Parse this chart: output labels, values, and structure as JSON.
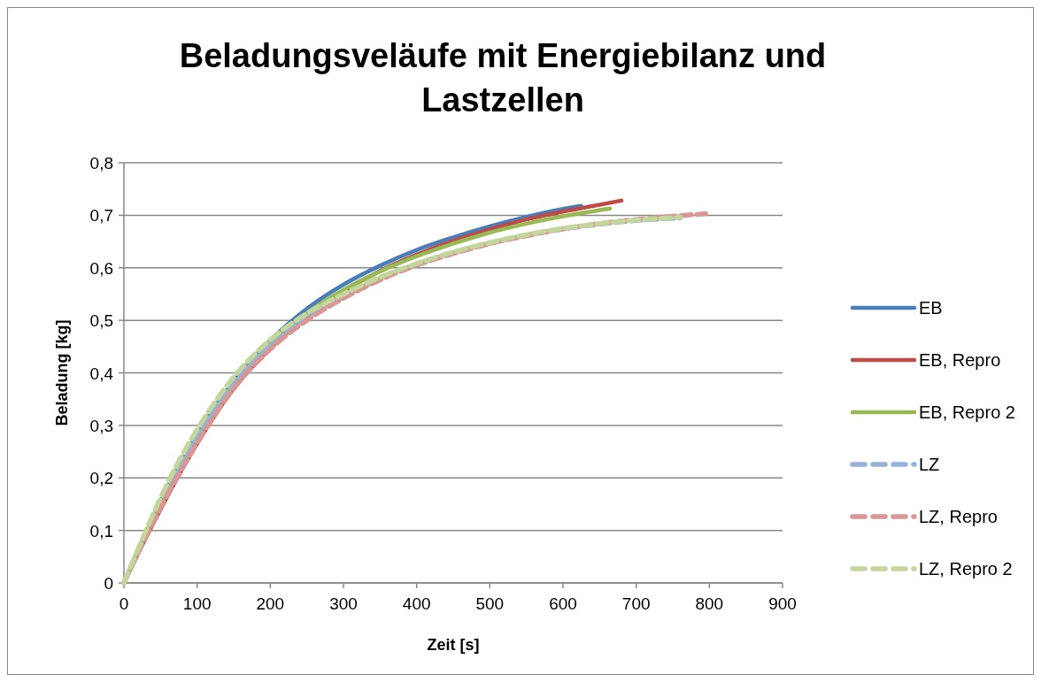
{
  "chart_data": {
    "type": "line",
    "title": "Beladungsveläufe mit Energiebilanz und Lastzellen",
    "xlabel": "Zeit [s]",
    "ylabel": "Beladung [kg]",
    "xlim": [
      0,
      900
    ],
    "xticks": [
      0,
      100,
      200,
      300,
      400,
      500,
      600,
      700,
      800,
      900
    ],
    "ylim": [
      0,
      0.8
    ],
    "yticks": [
      {
        "value": 0,
        "label": "0"
      },
      {
        "value": 0.1,
        "label": "0,1"
      },
      {
        "value": 0.2,
        "label": "0,2"
      },
      {
        "value": 0.3,
        "label": "0,3"
      },
      {
        "value": 0.4,
        "label": "0,4"
      },
      {
        "value": 0.5,
        "label": "0,5"
      },
      {
        "value": 0.6,
        "label": "0,6"
      },
      {
        "value": 0.7,
        "label": "0,7"
      },
      {
        "value": 0.8,
        "label": "0,8"
      }
    ],
    "grid": "y",
    "legend": "right",
    "series": [
      {
        "name": "EB",
        "color": "#4a7ebb",
        "line_style": "solid",
        "x": [
          0,
          25,
          50,
          75,
          100,
          150,
          200,
          250,
          300,
          350,
          400,
          450,
          500,
          550,
          600,
          625
        ],
        "values": [
          0,
          0.08,
          0.155,
          0.222,
          0.283,
          0.385,
          0.462,
          0.522,
          0.568,
          0.604,
          0.634,
          0.658,
          0.679,
          0.697,
          0.712,
          0.718
        ]
      },
      {
        "name": "EB, Repro",
        "color": "#be4b48",
        "line_style": "solid",
        "x": [
          0,
          25,
          50,
          75,
          100,
          150,
          200,
          250,
          300,
          350,
          400,
          450,
          500,
          550,
          600,
          650,
          680
        ],
        "values": [
          0,
          0.072,
          0.14,
          0.205,
          0.265,
          0.37,
          0.447,
          0.508,
          0.555,
          0.594,
          0.625,
          0.651,
          0.673,
          0.692,
          0.707,
          0.72,
          0.728
        ]
      },
      {
        "name": "EB, Repro 2",
        "color": "#98b954",
        "line_style": "solid",
        "x": [
          0,
          25,
          50,
          75,
          100,
          150,
          200,
          250,
          300,
          350,
          400,
          450,
          500,
          550,
          600,
          664
        ],
        "values": [
          0,
          0.078,
          0.15,
          0.215,
          0.275,
          0.378,
          0.455,
          0.514,
          0.558,
          0.593,
          0.622,
          0.646,
          0.667,
          0.684,
          0.698,
          0.713
        ]
      },
      {
        "name": "LZ",
        "color": "#95b3d7",
        "line_style": "dashed",
        "x": [
          0,
          25,
          50,
          75,
          100,
          150,
          200,
          250,
          300,
          350,
          400,
          450,
          500,
          550,
          600,
          650,
          700,
          760
        ],
        "values": [
          0,
          0.08,
          0.155,
          0.222,
          0.28,
          0.38,
          0.452,
          0.505,
          0.545,
          0.58,
          0.607,
          0.629,
          0.647,
          0.662,
          0.674,
          0.683,
          0.69,
          0.695
        ]
      },
      {
        "name": "LZ, Repro",
        "color": "#d99694",
        "line_style": "dashed",
        "x": [
          0,
          25,
          50,
          75,
          100,
          150,
          200,
          250,
          300,
          350,
          400,
          450,
          500,
          550,
          600,
          650,
          700,
          750,
          795
        ],
        "values": [
          0,
          0.074,
          0.143,
          0.207,
          0.266,
          0.37,
          0.445,
          0.5,
          0.542,
          0.577,
          0.605,
          0.627,
          0.646,
          0.661,
          0.674,
          0.684,
          0.692,
          0.698,
          0.703
        ]
      },
      {
        "name": "LZ, Repro 2",
        "color": "#c3d69b",
        "line_style": "dashed",
        "x": [
          0,
          25,
          50,
          75,
          100,
          150,
          200,
          250,
          300,
          350,
          400,
          450,
          500,
          550,
          600,
          650,
          700,
          760
        ],
        "values": [
          0,
          0.083,
          0.162,
          0.232,
          0.292,
          0.392,
          0.463,
          0.513,
          0.55,
          0.582,
          0.608,
          0.63,
          0.648,
          0.663,
          0.675,
          0.684,
          0.691,
          0.696
        ]
      }
    ]
  }
}
